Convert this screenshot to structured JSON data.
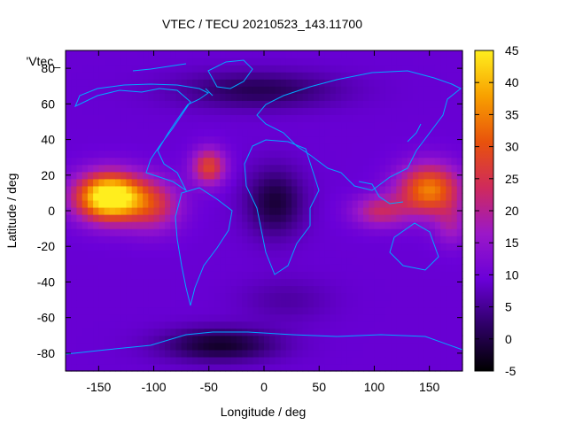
{
  "chart_data": {
    "type": "heatmap",
    "title": "VTEC / TECU 20210523_143.11700",
    "xlabel": "Longitude / deg",
    "ylabel": "Latitude / deg",
    "legend_label": "'Vtec_",
    "xlim": [
      -180,
      180
    ],
    "ylim": [
      -90,
      90
    ],
    "x_ticks": [
      -150,
      -100,
      -50,
      0,
      50,
      100,
      150
    ],
    "y_ticks": [
      -80,
      -60,
      -40,
      -20,
      0,
      20,
      40,
      60,
      80
    ],
    "colorbar": {
      "range": [
        -5,
        45
      ],
      "ticks": [
        -5,
        0,
        5,
        10,
        15,
        20,
        25,
        30,
        35,
        40,
        45
      ],
      "palette": [
        "#000000",
        "#2e0066",
        "#6a00d8",
        "#9b18c8",
        "#cf2a5c",
        "#e8520c",
        "#f8a000",
        "#ffee1e"
      ]
    },
    "background_level": 9,
    "features": [
      {
        "lon": -140,
        "lat": 8,
        "peak": 43,
        "spread_lon": 30,
        "spread_lat": 13
      },
      {
        "lon": -100,
        "lat": 3,
        "peak": 14,
        "spread_lon": 25,
        "spread_lat": 14
      },
      {
        "lon": -50,
        "lat": 25,
        "peak": 19,
        "spread_lon": 15,
        "spread_lat": 10
      },
      {
        "lon": 150,
        "lat": 12,
        "peak": 26,
        "spread_lon": 28,
        "spread_lat": 14
      },
      {
        "lon": 105,
        "lat": 0,
        "peak": 13,
        "spread_lon": 25,
        "spread_lat": 9
      },
      {
        "lon": 170,
        "lat": -8,
        "peak": 8,
        "spread_lon": 15,
        "spread_lat": 12
      },
      {
        "lon": 10,
        "lat": 5,
        "peak": -10,
        "spread_lon": 25,
        "spread_lat": 18
      },
      {
        "lon": -5,
        "lat": 68,
        "peak": -8,
        "spread_lon": 70,
        "spread_lat": 10
      },
      {
        "lon": -40,
        "lat": -75,
        "peak": -11,
        "spread_lon": 50,
        "spread_lat": 9
      },
      {
        "lon": 20,
        "lat": -50,
        "peak": -3,
        "spread_lon": 40,
        "spread_lat": 12
      }
    ]
  }
}
